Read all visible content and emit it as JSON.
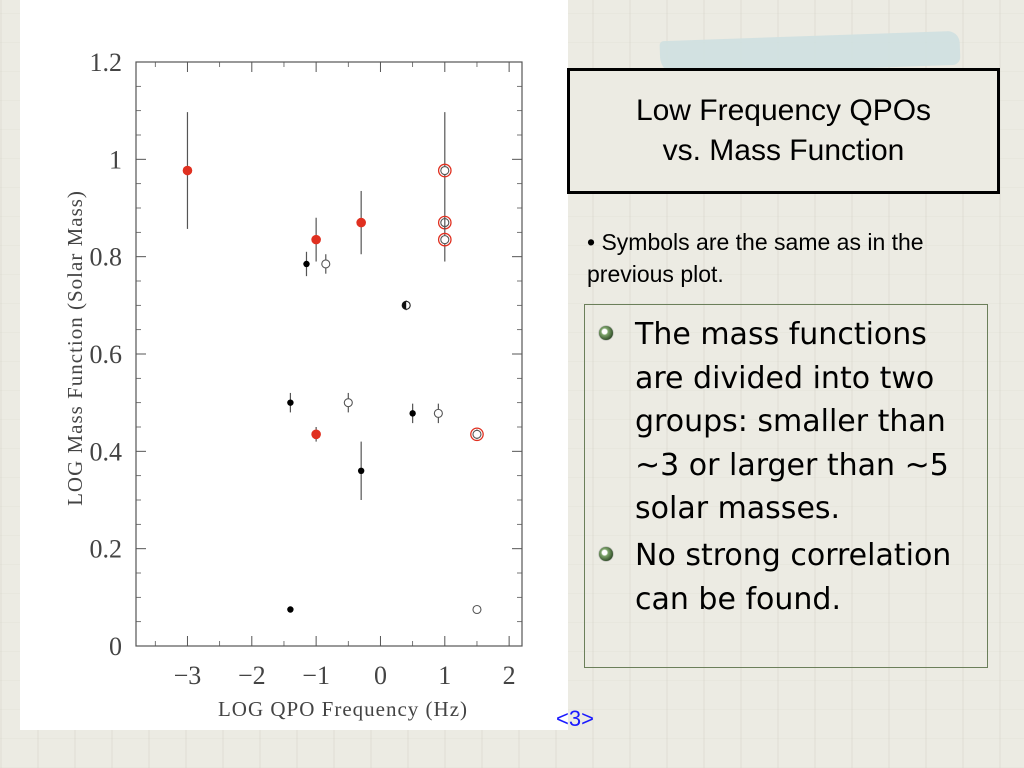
{
  "slide": {
    "title_line1": "Low Frequency QPOs",
    "title_line2": "vs. Mass Function",
    "note": "• Symbols are the same as in the previous plot.",
    "bullets": [
      "The mass functions are divided into two groups: smaller than ~3 or larger than ~5 solar masses.",
      "No strong correlation can be found."
    ],
    "page_number": "<3>"
  },
  "colors": {
    "filled_point": "#000000",
    "highlight_red": "#e03020",
    "axis": "#555555",
    "title_border": "#000000",
    "bullet_border": "#6b7f5a",
    "page_number": "#1a1aff"
  },
  "chart_data": {
    "type": "scatter",
    "title": "",
    "xlabel": "LOG QPO Frequency (Hz)",
    "ylabel": "LOG Mass Function (Solar Mass)",
    "xlim": [
      -3.8,
      2.2
    ],
    "ylim": [
      0,
      1.2
    ],
    "xticks": [
      -3,
      -2,
      -1,
      0,
      1,
      2
    ],
    "xtick_labels": [
      "−3",
      "−2",
      "−1",
      "0",
      "1",
      "2"
    ],
    "yticks": [
      0,
      0.2,
      0.4,
      0.6,
      0.8,
      1,
      1.2
    ],
    "ytick_labels": [
      "0",
      "0.2",
      "0.4",
      "0.6",
      "0.8",
      "1",
      "1.2"
    ],
    "grid": false,
    "points": [
      {
        "x": -3.0,
        "y": 0.977,
        "err": 0.12,
        "marker": "filled",
        "red": true
      },
      {
        "x": -1.0,
        "y": 0.835,
        "err": 0.045,
        "marker": "filled",
        "red": true
      },
      {
        "x": -0.3,
        "y": 0.87,
        "err": 0.065,
        "marker": "filled",
        "red": true
      },
      {
        "x": -1.15,
        "y": 0.785,
        "err": 0.025,
        "marker": "filled",
        "red": false
      },
      {
        "x": -0.85,
        "y": 0.785,
        "err": 0.02,
        "marker": "open",
        "red": false
      },
      {
        "x": 0.4,
        "y": 0.7,
        "err": 0.01,
        "marker": "half",
        "red": false
      },
      {
        "x": 1.0,
        "y": 0.977,
        "err": 0.12,
        "marker": "open",
        "red": true
      },
      {
        "x": 1.0,
        "y": 0.87,
        "err": 0.0,
        "marker": "open",
        "red": true
      },
      {
        "x": 1.0,
        "y": 0.835,
        "err": 0.045,
        "marker": "open",
        "red": true
      },
      {
        "x": -1.4,
        "y": 0.5,
        "err": 0.02,
        "marker": "filled",
        "red": false
      },
      {
        "x": -1.0,
        "y": 0.435,
        "err": 0.015,
        "marker": "filled",
        "red": true
      },
      {
        "x": -0.5,
        "y": 0.5,
        "err": 0.02,
        "marker": "open",
        "red": false
      },
      {
        "x": 0.5,
        "y": 0.478,
        "err": 0.02,
        "marker": "filled",
        "red": false
      },
      {
        "x": 0.9,
        "y": 0.478,
        "err": 0.02,
        "marker": "open",
        "red": false
      },
      {
        "x": 1.5,
        "y": 0.435,
        "err": 0.01,
        "marker": "open",
        "red": true
      },
      {
        "x": -0.3,
        "y": 0.36,
        "err": 0.06,
        "marker": "filled",
        "red": false
      },
      {
        "x": -1.4,
        "y": 0.075,
        "err": 0.0,
        "marker": "filled",
        "red": false
      },
      {
        "x": 1.5,
        "y": 0.075,
        "err": 0.0,
        "marker": "open",
        "red": false
      }
    ]
  }
}
